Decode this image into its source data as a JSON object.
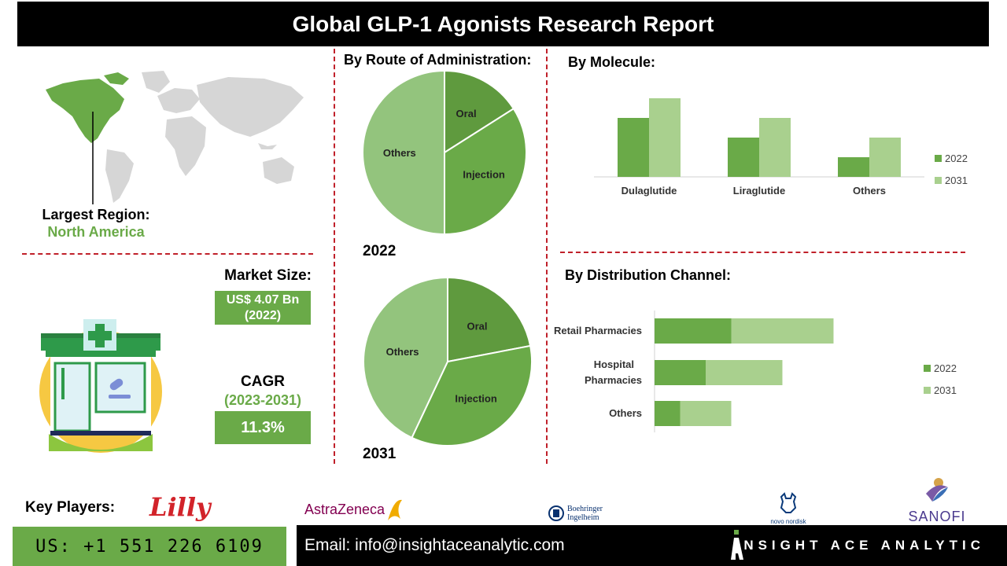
{
  "title": "Global GLP-1 Agonists Research Report",
  "region": {
    "label": "Largest Region:",
    "value": "North America"
  },
  "market_size": {
    "label": "Market Size:",
    "value": "US$ 4.07 Bn (2022)"
  },
  "cagr": {
    "label": "CAGR",
    "period": "(2023-2031)",
    "value": "11.3%"
  },
  "route": {
    "title": "By Route of Administration:",
    "year1": "2022",
    "year2": "2031"
  },
  "molecule": {
    "title": "By Molecule:"
  },
  "distribution": {
    "title": "By Distribution Channel:"
  },
  "key_players": {
    "label": "Key Players:",
    "logos": [
      "Lilly",
      "AstraZeneca",
      "Boehringer Ingelheim",
      "novo nordisk",
      "SANOFI"
    ]
  },
  "footer": {
    "phone": "US: +1 551 226 6109",
    "email": "Email: info@insightaceanalytic.com",
    "brand": "INSIGHT ACE ANALYTIC"
  },
  "colors": {
    "dark_green": "#5f9a3e",
    "mid_green": "#6aaa48",
    "light_green": "#93c47d",
    "pale_green": "#a9d08e",
    "red_dash": "#c0202a"
  },
  "chart_data": [
    {
      "type": "pie",
      "title": "2022",
      "labels": [
        "Oral",
        "Injection",
        "Others"
      ],
      "values": [
        16,
        34,
        50
      ]
    },
    {
      "type": "pie",
      "title": "2031",
      "labels": [
        "Oral",
        "Injection",
        "Others"
      ],
      "values": [
        22,
        35,
        43
      ]
    },
    {
      "type": "bar",
      "title": "By Molecule:",
      "categories": [
        "Dulaglutide",
        "Liraglutide",
        "Others"
      ],
      "series": [
        {
          "name": "2022",
          "values": [
            3,
            2,
            1
          ]
        },
        {
          "name": "2031",
          "values": [
            4,
            3,
            2
          ]
        }
      ],
      "legend": "right"
    },
    {
      "type": "bar",
      "orientation": "horizontal-stacked",
      "title": "By Distribution Channel:",
      "categories": [
        "Retail Pharmacies",
        "Hospital Pharmacies",
        "Others"
      ],
      "series": [
        {
          "name": "2022",
          "values": [
            3,
            2,
            1
          ]
        },
        {
          "name": "2031",
          "values": [
            4,
            3,
            2
          ]
        }
      ],
      "legend": "right"
    }
  ]
}
